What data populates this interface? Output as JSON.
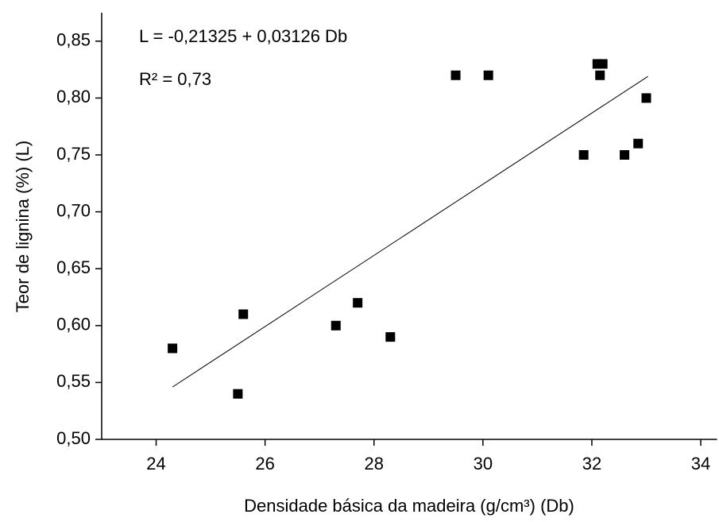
{
  "chart_data": {
    "type": "scatter",
    "xlabel": "Densidade básica da madeira (g/cm³) (Db)",
    "ylabel": "Teor de lignina (%) (L)",
    "annotations": [
      "L = -0,21325 + 0,03126 Db",
      "R² = 0,73"
    ],
    "x": [
      24.3,
      25.5,
      25.6,
      27.3,
      27.7,
      28.3,
      29.5,
      30.1,
      31.85,
      32.1,
      32.2,
      32.15,
      32.6,
      32.85,
      33.0
    ],
    "values": [
      0.58,
      0.54,
      0.61,
      0.6,
      0.62,
      0.59,
      0.82,
      0.82,
      0.75,
      0.83,
      0.83,
      0.82,
      0.75,
      0.76,
      0.8
    ],
    "color": "#000000",
    "trendline": {
      "x": [
        24.3,
        33.03
      ],
      "y": [
        0.546,
        0.819
      ]
    },
    "xlim": [
      23,
      34.3
    ],
    "ylim": [
      0.5,
      0.875
    ],
    "xticks": [
      24,
      26,
      28,
      30,
      32,
      34
    ],
    "yticks": [
      {
        "value": 0.5,
        "label": "0,50"
      },
      {
        "value": 0.55,
        "label": "0,55"
      },
      {
        "value": 0.6,
        "label": "0,60"
      },
      {
        "value": 0.65,
        "label": "0,65"
      },
      {
        "value": 0.7,
        "label": "0,70"
      },
      {
        "value": 0.75,
        "label": "0,75"
      },
      {
        "value": 0.8,
        "label": "0,80"
      },
      {
        "value": 0.85,
        "label": "0,85"
      }
    ]
  }
}
